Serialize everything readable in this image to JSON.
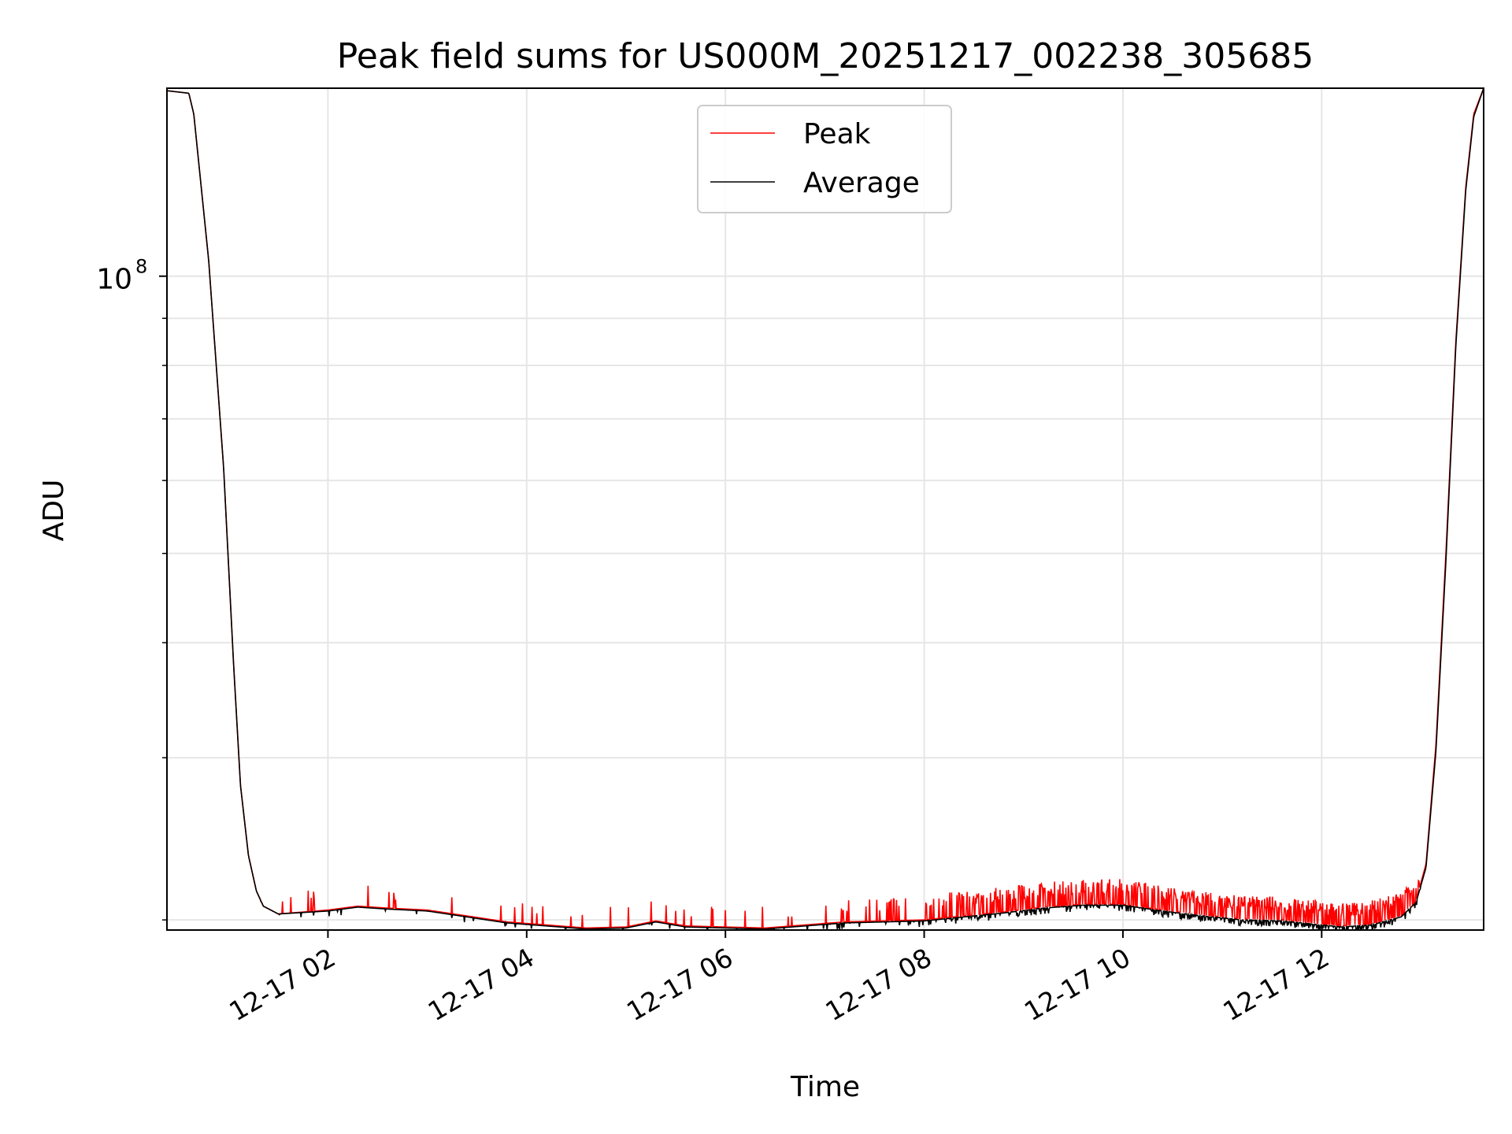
{
  "chart_data": {
    "type": "line",
    "title": "Peak field sums for US000M_20251217_002238_305685",
    "xlabel": "Time",
    "ylabel": "ADU",
    "yscale": "log",
    "ylim": [
      19500000,
      160000000
    ],
    "xlim_hours": [
      0.38,
      13.63
    ],
    "x_ticks": [
      {
        "hour": 2,
        "label": "12-17 02"
      },
      {
        "hour": 4,
        "label": "12-17 04"
      },
      {
        "hour": 6,
        "label": "12-17 06"
      },
      {
        "hour": 8,
        "label": "12-17 08"
      },
      {
        "hour": 10,
        "label": "12-17 10"
      },
      {
        "hour": 12,
        "label": "12-17 12"
      }
    ],
    "y_ticks_major": [
      {
        "value": 100000000,
        "base": "10",
        "exp": "8"
      }
    ],
    "y_ticks_minor": [
      20000000,
      30000000,
      40000000,
      50000000,
      60000000,
      70000000,
      80000000,
      90000000,
      200000000
    ],
    "grid": true,
    "legend_position": "top-center",
    "series": [
      {
        "name": "Peak",
        "color": "#ff0000",
        "x_hours": [
          0.38,
          0.6,
          0.65,
          0.8,
          0.95,
          1.05,
          1.12,
          1.2,
          1.28,
          1.35,
          1.5,
          2.0,
          2.3,
          2.6,
          3.0,
          3.4,
          3.8,
          4.2,
          4.6,
          5.0,
          5.3,
          5.6,
          6.0,
          6.4,
          6.8,
          7.2,
          7.6,
          8.0,
          8.4,
          8.8,
          9.2,
          9.6,
          10.0,
          10.4,
          10.8,
          11.2,
          11.6,
          12.0,
          12.2,
          12.5,
          12.8,
          12.95,
          13.05,
          13.15,
          13.25,
          13.35,
          13.45,
          13.53,
          13.63
        ],
        "values": [
          159000000,
          158000000,
          150000000,
          104000000,
          62000000,
          38000000,
          28000000,
          23500000,
          21500000,
          20700000,
          20300000,
          20500000,
          20700000,
          20600000,
          20500000,
          20200000,
          19900000,
          19750000,
          19600000,
          19650000,
          19950000,
          19700000,
          19650000,
          19600000,
          19750000,
          19900000,
          19950000,
          20000000,
          20200000,
          20400000,
          20650000,
          20800000,
          20800000,
          20500000,
          20250000,
          20050000,
          20000000,
          19800000,
          19700000,
          19800000,
          20200000,
          21000000,
          23000000,
          31000000,
          50000000,
          85000000,
          125000000,
          150000000,
          160000000
        ]
      },
      {
        "name": "Average",
        "color": "#000000",
        "x_hours": [
          0.38,
          0.6,
          0.65,
          0.8,
          0.95,
          1.05,
          1.12,
          1.2,
          1.28,
          1.35,
          1.5,
          2.0,
          2.3,
          2.6,
          3.0,
          3.4,
          3.8,
          4.2,
          4.6,
          5.0,
          5.3,
          5.6,
          6.0,
          6.4,
          6.8,
          7.2,
          7.6,
          8.0,
          8.4,
          8.8,
          9.2,
          9.6,
          10.0,
          10.4,
          10.8,
          11.2,
          11.6,
          12.0,
          12.2,
          12.5,
          12.8,
          12.95,
          13.05,
          13.15,
          13.25,
          13.35,
          13.45,
          13.53,
          13.63
        ],
        "values": [
          159000000,
          158000000,
          150000000,
          104000000,
          62000000,
          38000000,
          28000000,
          23500000,
          21500000,
          20700000,
          20300000,
          20450000,
          20650000,
          20550000,
          20450000,
          20150000,
          19850000,
          19700000,
          19550000,
          19600000,
          19900000,
          19650000,
          19600000,
          19550000,
          19700000,
          19850000,
          19900000,
          19950000,
          20150000,
          20350000,
          20600000,
          20750000,
          20750000,
          20450000,
          20200000,
          20000000,
          19950000,
          19750000,
          19650000,
          19750000,
          20150000,
          20900000,
          22800000,
          30500000,
          49000000,
          84000000,
          124000000,
          149000000,
          160000000
        ]
      }
    ]
  }
}
